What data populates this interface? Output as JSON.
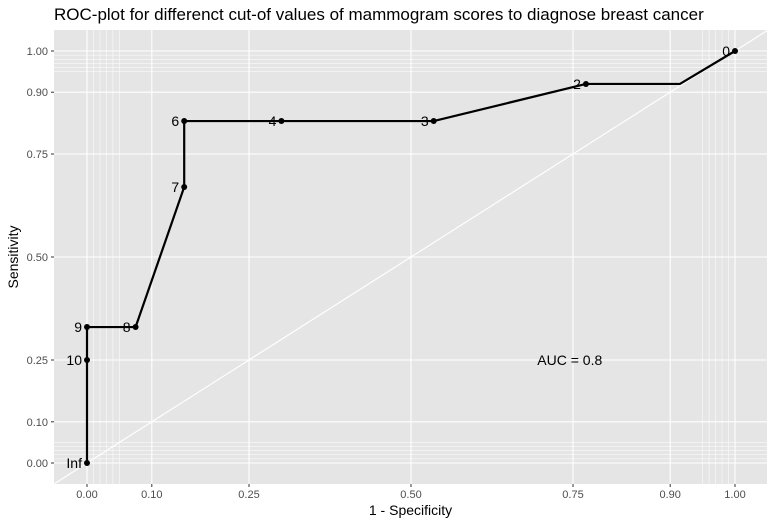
{
  "chart_data": {
    "type": "line",
    "title": "ROC-plot for differenct cut-of values of mammogram scores to diagnose breast cancer",
    "xlabel": "1 - Specificity",
    "ylabel": "Sensitivity",
    "xlim": [
      -0.05,
      1.05
    ],
    "ylim": [
      -0.05,
      1.05
    ],
    "x_ticks": [
      0.0,
      0.1,
      0.25,
      0.5,
      0.75,
      0.9,
      1.0
    ],
    "x_tick_labels": [
      "0.00",
      "0.10",
      "0.25",
      "0.50",
      "0.75",
      "0.90",
      "1.00"
    ],
    "y_ticks": [
      0.0,
      0.1,
      0.25,
      0.5,
      0.75,
      0.9,
      1.0
    ],
    "y_tick_labels": [
      "0.00",
      "0.10",
      "0.25",
      "0.50",
      "0.75",
      "0.90",
      "1.00"
    ],
    "grid": true,
    "x_minor_grid": [
      0.01,
      0.02,
      0.03,
      0.04,
      0.05,
      0.95,
      0.96,
      0.97,
      0.98,
      0.99
    ],
    "y_minor_grid": [
      0.01,
      0.02,
      0.03,
      0.04,
      0.05,
      0.95,
      0.96,
      0.97,
      0.98,
      0.99
    ],
    "diagonal_reference": true,
    "points": [
      {
        "label": "Inf",
        "x": 0.0,
        "y": 0.0
      },
      {
        "label": "10",
        "x": 0.0,
        "y": 0.25
      },
      {
        "label": "9",
        "x": 0.0,
        "y": 0.33
      },
      {
        "label": "8",
        "x": 0.075,
        "y": 0.33
      },
      {
        "label": "7",
        "x": 0.15,
        "y": 0.67
      },
      {
        "label": "6",
        "x": 0.15,
        "y": 0.83
      },
      {
        "label": "4",
        "x": 0.3,
        "y": 0.83
      },
      {
        "label": "3",
        "x": 0.535,
        "y": 0.83
      },
      {
        "label": "2",
        "x": 0.77,
        "y": 0.92
      },
      {
        "label": "0",
        "x": 1.0,
        "y": 1.0
      }
    ],
    "step_via": {
      "x": 0.915,
      "y": 0.92
    },
    "annotation": "AUC = 0.8",
    "annotation_position": {
      "x": 0.745,
      "y": 0.25
    },
    "colors": {
      "panel": "#e5e5e5",
      "grid": "#ffffff",
      "line": "#000000",
      "text": "#000000",
      "tick_text": "#4d4d4d"
    }
  }
}
